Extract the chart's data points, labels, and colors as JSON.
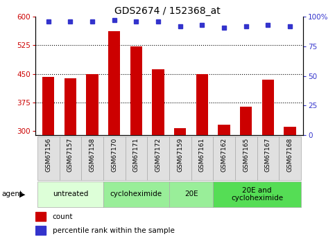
{
  "title": "GDS2674 / 152368_at",
  "samples": [
    "GSM67156",
    "GSM67157",
    "GSM67158",
    "GSM67170",
    "GSM67171",
    "GSM67172",
    "GSM67159",
    "GSM67161",
    "GSM67162",
    "GSM67165",
    "GSM67167",
    "GSM67168"
  ],
  "counts": [
    443,
    438,
    450,
    562,
    522,
    462,
    308,
    450,
    318,
    365,
    435,
    312
  ],
  "percentiles": [
    96,
    96,
    96,
    97,
    96,
    96,
    92,
    93,
    91,
    92,
    93,
    92
  ],
  "ymin": 290,
  "ymax": 600,
  "yticks_major": [
    300,
    375,
    450,
    525,
    600
  ],
  "yticks_grid": [
    375,
    450,
    525
  ],
  "y2ticks": [
    0,
    25,
    50,
    75,
    100
  ],
  "bar_color": "#cc0000",
  "dot_color": "#3333cc",
  "bg_color": "#ffffff",
  "axis_label_color_left": "#cc0000",
  "axis_label_color_right": "#3333cc",
  "group_data": [
    {
      "label": "untreated",
      "start": 0,
      "end": 3,
      "color": "#ddffd8"
    },
    {
      "label": "cycloheximide",
      "start": 3,
      "end": 6,
      "color": "#99ee99"
    },
    {
      "label": "20E",
      "start": 6,
      "end": 8,
      "color": "#99ee99"
    },
    {
      "label": "20E and\ncycloheximide",
      "start": 8,
      "end": 12,
      "color": "#55dd55"
    }
  ],
  "legend_count_label": "count",
  "legend_pct_label": "percentile rank within the sample",
  "title_fontsize": 10,
  "tick_fontsize": 7.5,
  "label_fontsize": 6.5,
  "group_fontsize": 7.5,
  "legend_fontsize": 7.5
}
